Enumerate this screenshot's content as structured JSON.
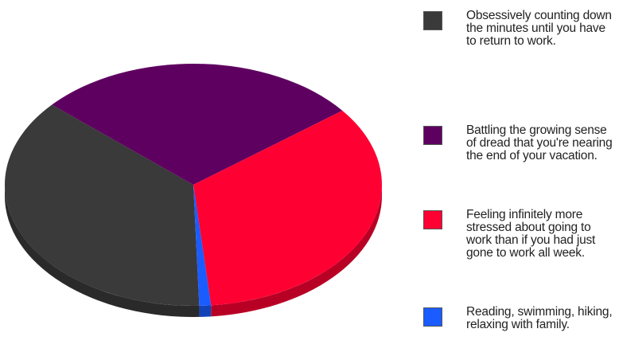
{
  "chart_data": {
    "type": "pie",
    "title": "",
    "series": [
      {
        "name": "Obsessively counting down the minutes until you have to return to work.",
        "value": 37,
        "color": "#3a3a3a"
      },
      {
        "name": "Battling the growing sense of dread that you're nearing the end of your vacation.",
        "value": 28,
        "color": "#5e0060"
      },
      {
        "name": "Feeling infinitely more stressed about going to work than if you had just gone to work all week.",
        "value": 34,
        "color": "#ff0033"
      },
      {
        "name": "Reading, swimming, hiking, relaxing with family.",
        "value": 1,
        "color": "#1a5cff"
      }
    ],
    "legend_placement": "right"
  }
}
